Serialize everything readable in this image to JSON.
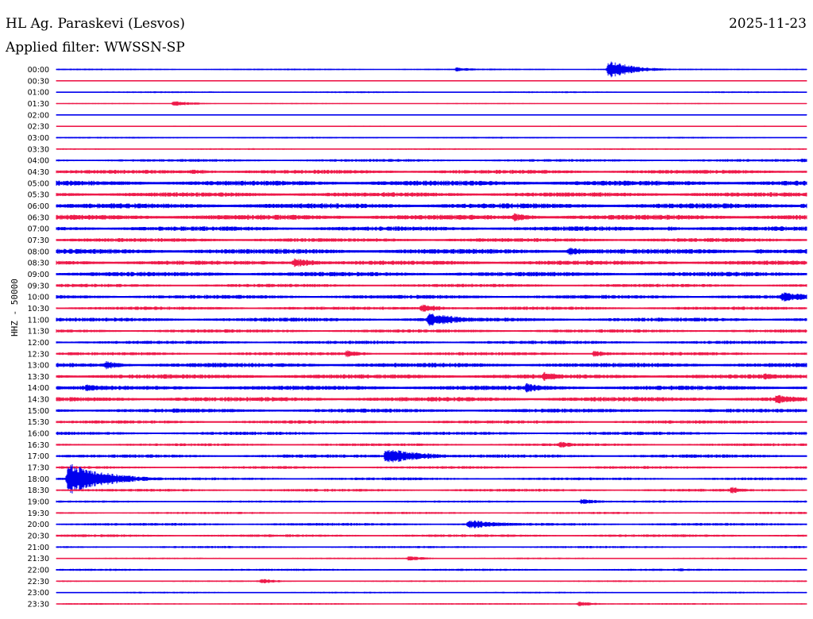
{
  "header": {
    "station": "HL Ag. Paraskevi (Lesvos)",
    "date": "2025-11-23",
    "filter": "Applied filter: WWSSN-SP"
  },
  "axis_label": "HHZ - 50000",
  "colors": {
    "even_row": "#0000ee",
    "odd_row": "#ee1a4a"
  },
  "chart_data": {
    "type": "line",
    "title": "HL Ag. Paraskevi (Lesvos)",
    "subtitle": "Applied filter: WWSSN-SP",
    "ylabel": "HHZ - 50000",
    "row_labels": [
      "00:00",
      "00:30",
      "01:00",
      "01:30",
      "02:00",
      "02:30",
      "03:00",
      "03:30",
      "04:00",
      "04:30",
      "05:00",
      "05:30",
      "06:00",
      "06:30",
      "07:00",
      "07:30",
      "08:00",
      "08:30",
      "09:00",
      "09:30",
      "10:00",
      "10:30",
      "11:00",
      "11:30",
      "12:00",
      "12:30",
      "13:00",
      "13:30",
      "14:00",
      "14:30",
      "15:00",
      "15:30",
      "16:00",
      "16:30",
      "17:00",
      "17:30",
      "18:00",
      "18:30",
      "19:00",
      "19:30",
      "20:00",
      "20:30",
      "21:00",
      "21:30",
      "22:00",
      "22:30",
      "23:00",
      "23:30"
    ],
    "row_noise_level": [
      0.3,
      0.2,
      0.3,
      0.2,
      0.2,
      0.2,
      0.3,
      0.3,
      0.5,
      0.7,
      0.9,
      0.8,
      0.9,
      0.9,
      0.8,
      0.7,
      0.9,
      0.8,
      0.8,
      0.6,
      0.7,
      0.6,
      0.7,
      0.6,
      0.6,
      0.6,
      0.8,
      0.8,
      0.8,
      0.8,
      0.7,
      0.6,
      0.6,
      0.5,
      0.6,
      0.5,
      0.5,
      0.5,
      0.4,
      0.4,
      0.5,
      0.5,
      0.4,
      0.3,
      0.4,
      0.3,
      0.3,
      0.3
    ],
    "events": [
      {
        "row": 0,
        "minute": 16.0,
        "amplitude": 1.0,
        "duration": 1.0
      },
      {
        "row": 0,
        "minute": 22.1,
        "amplitude": 4.5,
        "duration": 1.0
      },
      {
        "row": 3,
        "minute": 4.7,
        "amplitude": 1.3,
        "duration": 1.0
      },
      {
        "row": 8,
        "minute": 29.8,
        "amplitude": 0.9,
        "duration": 1.5
      },
      {
        "row": 9,
        "minute": 5.4,
        "amplitude": 1.2,
        "duration": 1.5
      },
      {
        "row": 12,
        "minute": 29.8,
        "amplitude": 1.3,
        "duration": 1.5
      },
      {
        "row": 13,
        "minute": 18.3,
        "amplitude": 2.0,
        "duration": 1.0
      },
      {
        "row": 14,
        "minute": 24.5,
        "amplitude": 1.2,
        "duration": 1.0
      },
      {
        "row": 16,
        "minute": 20.5,
        "amplitude": 2.0,
        "duration": 1.2
      },
      {
        "row": 16,
        "minute": 28.0,
        "amplitude": 1.2,
        "duration": 1.5
      },
      {
        "row": 17,
        "minute": 9.5,
        "amplitude": 2.2,
        "duration": 1.2
      },
      {
        "row": 20,
        "minute": 29.0,
        "amplitude": 2.4,
        "duration": 1.5
      },
      {
        "row": 21,
        "minute": 14.6,
        "amplitude": 2.0,
        "duration": 1.0
      },
      {
        "row": 22,
        "minute": 14.9,
        "amplitude": 3.2,
        "duration": 1.5
      },
      {
        "row": 25,
        "minute": 11.6,
        "amplitude": 1.8,
        "duration": 0.8
      },
      {
        "row": 25,
        "minute": 21.5,
        "amplitude": 1.6,
        "duration": 0.8
      },
      {
        "row": 26,
        "minute": 2.0,
        "amplitude": 2.0,
        "duration": 0.8
      },
      {
        "row": 27,
        "minute": 19.5,
        "amplitude": 2.3,
        "duration": 1.0
      },
      {
        "row": 27,
        "minute": 28.3,
        "amplitude": 1.8,
        "duration": 1.0
      },
      {
        "row": 28,
        "minute": 1.2,
        "amplitude": 1.8,
        "duration": 1.0
      },
      {
        "row": 28,
        "minute": 18.8,
        "amplitude": 2.3,
        "duration": 1.0
      },
      {
        "row": 29,
        "minute": 28.8,
        "amplitude": 2.5,
        "duration": 1.0
      },
      {
        "row": 30,
        "minute": 4.7,
        "amplitude": 1.2,
        "duration": 0.6
      },
      {
        "row": 33,
        "minute": 20.1,
        "amplitude": 1.6,
        "duration": 0.8
      },
      {
        "row": 34,
        "minute": 9.1,
        "amplitude": 1.0,
        "duration": 0.5
      },
      {
        "row": 34,
        "minute": 13.2,
        "amplitude": 4.0,
        "duration": 1.5
      },
      {
        "row": 36,
        "minute": 0.5,
        "amplitude": 8.0,
        "duration": 1.5
      },
      {
        "row": 37,
        "minute": 27.0,
        "amplitude": 1.8,
        "duration": 0.6
      },
      {
        "row": 38,
        "minute": 21.0,
        "amplitude": 1.4,
        "duration": 1.0
      },
      {
        "row": 40,
        "minute": 16.5,
        "amplitude": 2.3,
        "duration": 1.5
      },
      {
        "row": 43,
        "minute": 14.1,
        "amplitude": 1.3,
        "duration": 0.8
      },
      {
        "row": 44,
        "minute": 24.9,
        "amplitude": 0.8,
        "duration": 0.8
      },
      {
        "row": 45,
        "minute": 8.2,
        "amplitude": 1.3,
        "duration": 0.8
      },
      {
        "row": 47,
        "minute": 20.9,
        "amplitude": 1.2,
        "duration": 0.8
      }
    ],
    "x_range_minutes": [
      0,
      30
    ],
    "grid": false
  }
}
